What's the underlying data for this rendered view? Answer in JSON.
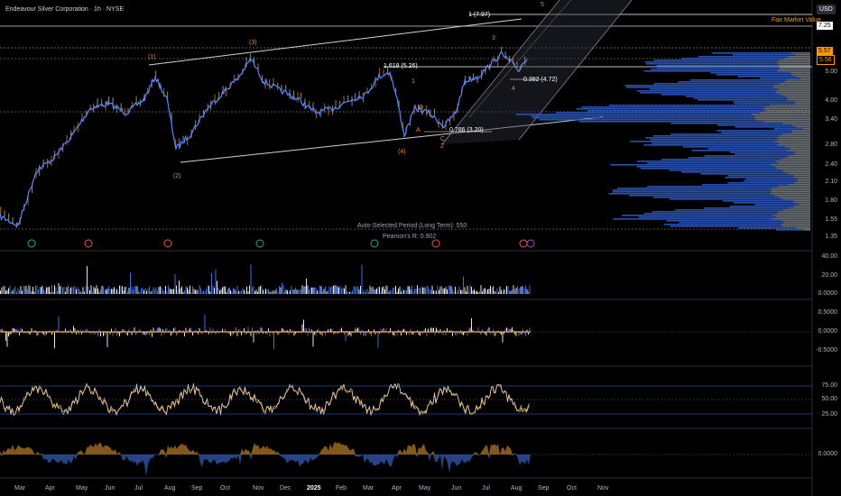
{
  "header": {
    "title": "Endeavour Silver Corporation · 1h · NYSE",
    "currency": "USD"
  },
  "price_axis": {
    "labels": [
      "5.00",
      "4.00",
      "3.40",
      "2.80",
      "2.40",
      "2.10",
      "1.80",
      "1.55",
      "1.35"
    ],
    "fair_value_tag": "7.25",
    "current_tags": [
      "5.57",
      "5.56"
    ]
  },
  "main_labels": {
    "fair_market_value": "Fair Market Value",
    "fib_1": "1 (7.97)",
    "fib_1618": "1.618 (5.26)",
    "fib_0382": "0.382 (4.72)",
    "fib_0786": "0.786 (3.20)",
    "auto_period": "Auto-Selected Period (Long Term): 550",
    "pearson": "Pearson's R: 0.902",
    "wave_1": "(1)",
    "wave_2": "(2)",
    "wave_3": "(3)",
    "wave_4": "(4)",
    "w3": "3",
    "w4": "4",
    "w5": "5",
    "w1": "1",
    "wA": "A",
    "wB": "B",
    "wC": "C",
    "w2": "2"
  },
  "volume_axis": [
    "40.00",
    "20.00",
    "0.0000"
  ],
  "osc1_axis": [
    "0.5000",
    "0.0000",
    "-0.5000"
  ],
  "rsi_axis": [
    "75.00",
    "50.00",
    "25.00"
  ],
  "osc3_axis": [
    "0.0000"
  ],
  "time_axis": [
    "Mar",
    "Apr",
    "May",
    "Jun",
    "Jul",
    "Aug",
    "Sep",
    "Oct",
    "Nov",
    "Dec",
    "2025",
    "Feb",
    "Mar",
    "Apr",
    "May",
    "Jun",
    "Jul",
    "Aug",
    "Sep",
    "Oct",
    "Nov"
  ],
  "colors": {
    "blue": "#3d6fe0",
    "orange": "#f0a030",
    "wave_orange": "#e8872b",
    "fair": "#ff9800"
  }
}
